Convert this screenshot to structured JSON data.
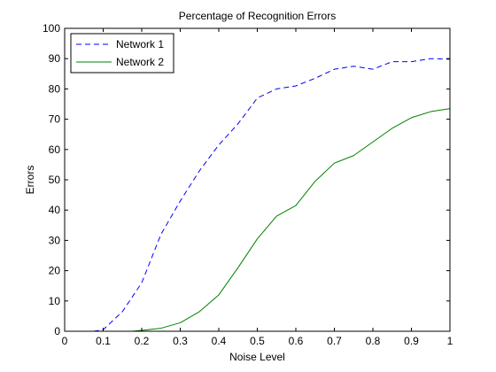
{
  "chart_data": {
    "type": "line",
    "title": "Percentage of Recognition Errors",
    "xlabel": "Noise Level",
    "ylabel": "Errors",
    "xlim": [
      0,
      1
    ],
    "ylim": [
      0,
      100
    ],
    "xticks": [
      "0",
      "0.1",
      "0.2",
      "0.3",
      "0.4",
      "0.5",
      "0.6",
      "0.7",
      "0.8",
      "0.9",
      "1"
    ],
    "yticks": [
      "0",
      "10",
      "20",
      "30",
      "40",
      "50",
      "60",
      "70",
      "80",
      "90",
      "100"
    ],
    "grid": false,
    "legend_position": "top-left",
    "series": [
      {
        "name": "Network 1",
        "color": "#0000ff",
        "line_style": "dashed",
        "x": [
          0.075,
          0.1,
          0.15,
          0.2,
          0.25,
          0.3,
          0.35,
          0.4,
          0.45,
          0.5,
          0.55,
          0.6,
          0.65,
          0.7,
          0.75,
          0.8,
          0.85,
          0.9,
          0.95,
          1.0
        ],
        "y": [
          0,
          0.5,
          6.5,
          16,
          32,
          43,
          53,
          61.5,
          68.5,
          77,
          80,
          81,
          83.5,
          86.5,
          87.5,
          86.5,
          89,
          89,
          90,
          89.8
        ]
      },
      {
        "name": "Network 2",
        "color": "#008000",
        "line_style": "solid",
        "x": [
          0.175,
          0.2,
          0.25,
          0.3,
          0.35,
          0.4,
          0.45,
          0.5,
          0.55,
          0.6,
          0.65,
          0.7,
          0.75,
          0.8,
          0.85,
          0.9,
          0.95,
          1.0
        ],
        "y": [
          0,
          0.3,
          1,
          2.8,
          6.5,
          12,
          21,
          30.5,
          38,
          41.5,
          49.5,
          55.5,
          58,
          62.5,
          67,
          70.5,
          72.5,
          73.5
        ]
      }
    ]
  }
}
